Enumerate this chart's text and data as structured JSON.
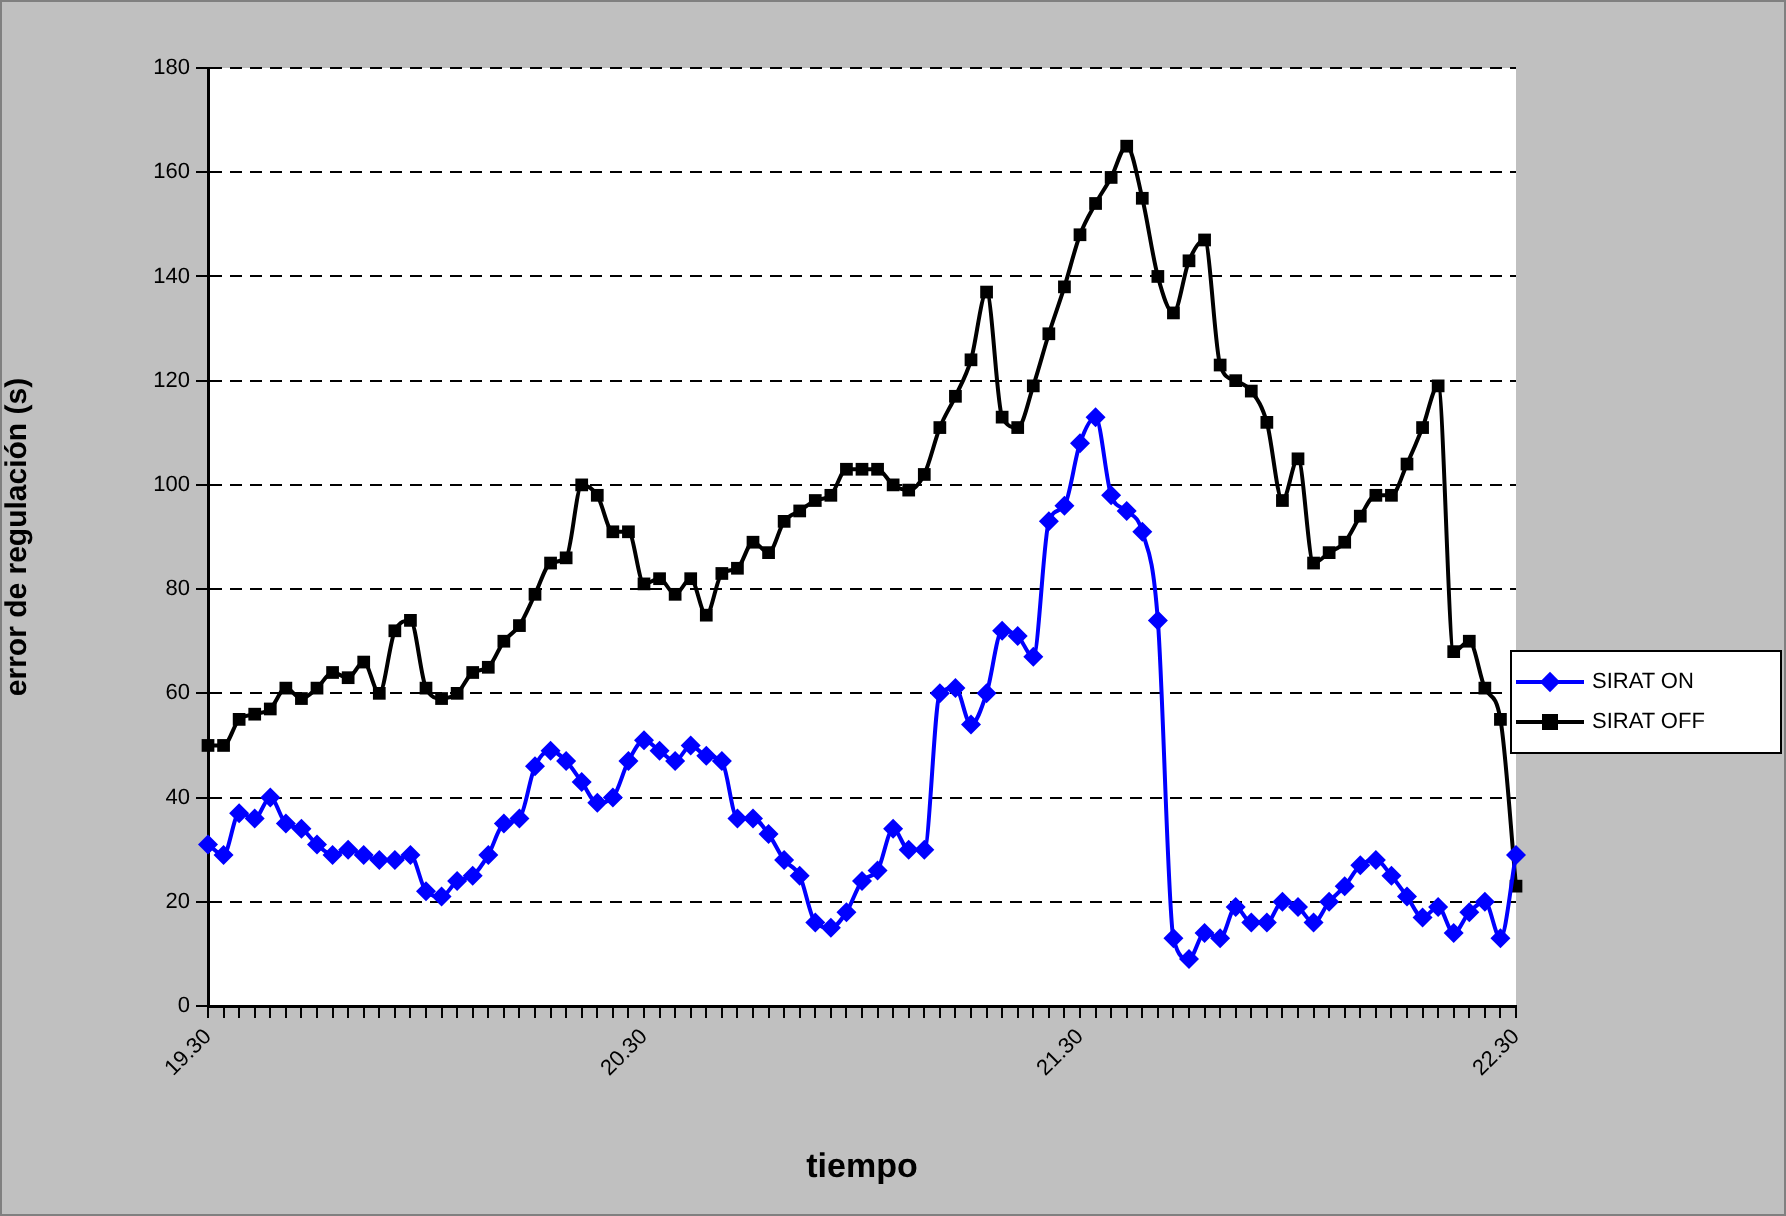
{
  "chart_data": {
    "type": "line",
    "xlabel": "tiempo",
    "ylabel": "error de regulación (s)",
    "categories": [
      "19.30",
      null,
      null,
      null,
      null,
      null,
      null,
      null,
      null,
      null,
      null,
      null,
      null,
      null,
      null,
      null,
      null,
      null,
      null,
      null,
      null,
      null,
      null,
      null,
      null,
      null,
      null,
      null,
      "20.30",
      null,
      null,
      null,
      null,
      null,
      null,
      null,
      null,
      null,
      null,
      null,
      null,
      null,
      null,
      null,
      null,
      null,
      null,
      null,
      null,
      null,
      null,
      null,
      null,
      null,
      null,
      null,
      "21.30",
      null,
      null,
      null,
      null,
      null,
      null,
      null,
      null,
      null,
      null,
      null,
      null,
      null,
      null,
      null,
      null,
      null,
      null,
      null,
      null,
      null,
      null,
      null,
      null,
      null,
      null,
      null,
      "22.30"
    ],
    "series": [
      {
        "name": "SIRAT ON",
        "color": "#0000ff",
        "marker": "diamond",
        "values": [
          31,
          29,
          37,
          36,
          40,
          35,
          34,
          31,
          29,
          30,
          29,
          28,
          28,
          29,
          22,
          21,
          24,
          25,
          29,
          35,
          36,
          46,
          49,
          47,
          43,
          39,
          40,
          47,
          51,
          49,
          47,
          50,
          48,
          47,
          36,
          36,
          33,
          28,
          25,
          16,
          15,
          18,
          24,
          26,
          34,
          30,
          30,
          60,
          61,
          54,
          60,
          72,
          71,
          67,
          93,
          96,
          108,
          113,
          98,
          95,
          91,
          74,
          13,
          9,
          14,
          13,
          19,
          16,
          16,
          20,
          19,
          16,
          20,
          23,
          27,
          28,
          25,
          21,
          17,
          19,
          14,
          18,
          20,
          13,
          29
        ]
      },
      {
        "name": "SIRAT OFF",
        "color": "#000000",
        "marker": "square",
        "values": [
          50,
          50,
          55,
          56,
          57,
          61,
          59,
          61,
          64,
          63,
          66,
          60,
          72,
          74,
          61,
          59,
          60,
          64,
          65,
          70,
          73,
          79,
          85,
          86,
          100,
          98,
          91,
          91,
          81,
          82,
          79,
          82,
          75,
          83,
          84,
          89,
          87,
          93,
          95,
          97,
          98,
          103,
          103,
          103,
          100,
          99,
          102,
          111,
          117,
          124,
          137,
          113,
          111,
          119,
          129,
          138,
          148,
          154,
          159,
          165,
          155,
          140,
          133,
          143,
          147,
          123,
          120,
          118,
          112,
          97,
          105,
          85,
          87,
          89,
          94,
          98,
          98,
          104,
          111,
          119,
          68,
          70,
          61,
          55,
          23
        ]
      }
    ],
    "ylim": [
      0,
      180
    ],
    "yticks": [
      0,
      20,
      40,
      60,
      80,
      100,
      120,
      140,
      160,
      180
    ],
    "grid": "y",
    "legend": "right",
    "line_style": "solid"
  }
}
